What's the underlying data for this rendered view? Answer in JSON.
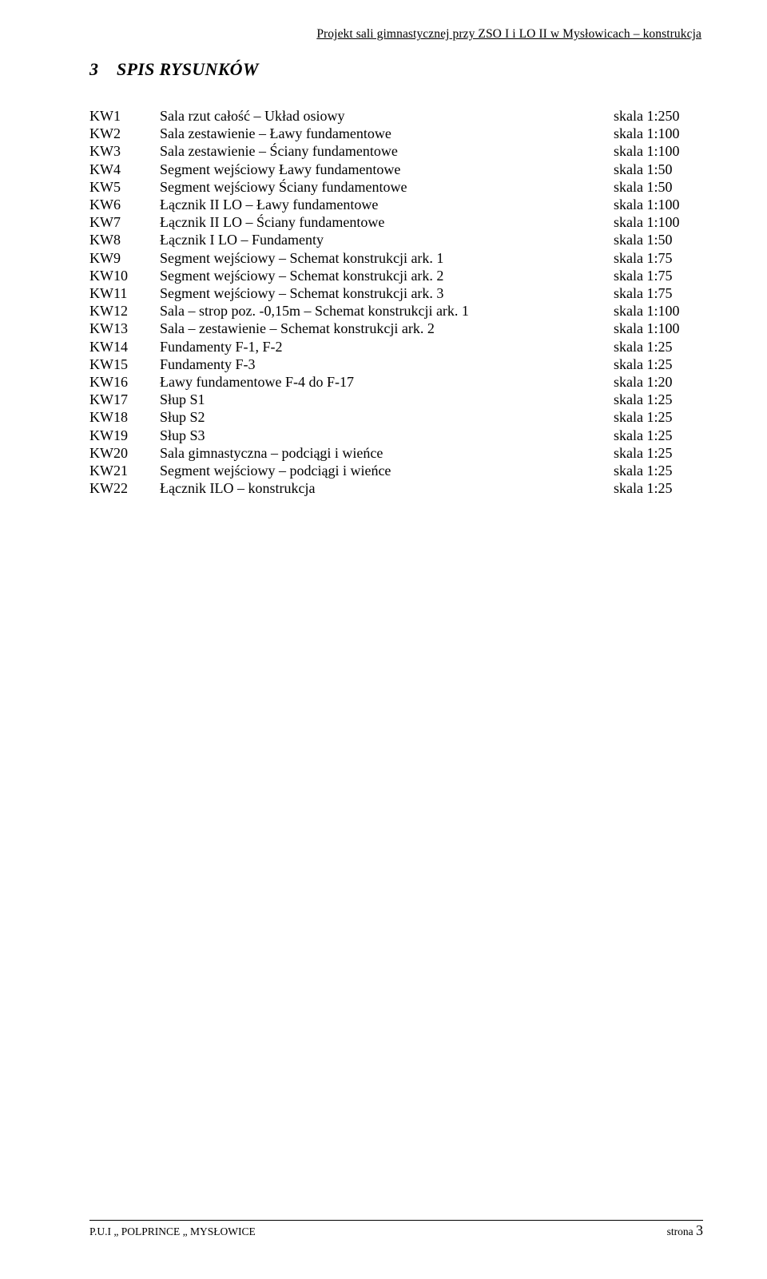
{
  "header": {
    "text": "Projekt sali gimnastycznej przy ZSO I  i  LO II  w Mysłowicach  – konstrukcja"
  },
  "section": {
    "number": "3",
    "title": "SPIS  RYSUNKÓW"
  },
  "rows": [
    {
      "code": "KW1",
      "desc": "Sala rzut całość – Układ osiowy",
      "scale": "skala 1:250"
    },
    {
      "code": "KW2",
      "desc": "Sala zestawienie – Ławy  fundamentowe",
      "scale": "skala 1:100"
    },
    {
      "code": "KW3",
      "desc": "Sala zestawienie – Ściany fundamentowe",
      "scale": "skala 1:100"
    },
    {
      "code": "KW4",
      "desc": "Segment wejściowy Ławy fundamentowe",
      "scale": "skala 1:50"
    },
    {
      "code": "KW5",
      "desc": "Segment wejściowy Ściany fundamentowe",
      "scale": "skala 1:50"
    },
    {
      "code": "KW6",
      "desc": "Łącznik II LO – Ławy fundamentowe",
      "scale": "skala 1:100"
    },
    {
      "code": "KW7",
      "desc": "Łącznik II LO – Ściany fundamentowe",
      "scale": "skala 1:100"
    },
    {
      "code": "KW8",
      "desc": "Łącznik I LO – Fundamenty",
      "scale": "skala 1:50"
    },
    {
      "code": "KW9",
      "desc": "Segment wejściowy – Schemat konstrukcji ark. 1",
      "scale": "skala 1:75"
    },
    {
      "code": "KW10",
      "desc": "Segment wejściowy – Schemat konstrukcji ark. 2",
      "scale": "skala 1:75"
    },
    {
      "code": "KW11",
      "desc": "Segment wejściowy – Schemat konstrukcji ark. 3",
      "scale": "skala 1:75"
    },
    {
      "code": "KW12",
      "desc": "Sala – strop poz. -0,15m – Schemat konstrukcji ark. 1",
      "scale": "skala 1:100"
    },
    {
      "code": "KW13",
      "desc": "Sala – zestawienie  – Schemat konstrukcji ark. 2",
      "scale": "skala 1:100"
    },
    {
      "code": "KW14",
      "desc": "Fundamenty F-1, F-2",
      "scale": "skala 1:25"
    },
    {
      "code": "KW15",
      "desc": "Fundamenty F-3",
      "scale": "skala 1:25"
    },
    {
      "code": "KW16",
      "desc": "Ławy fundamentowe F-4 do F-17",
      "scale": "skala 1:20"
    },
    {
      "code": "KW17",
      "desc": "Słup S1",
      "scale": "skala 1:25"
    },
    {
      "code": "KW18",
      "desc": "Słup S2",
      "scale": "skala 1:25"
    },
    {
      "code": "KW19",
      "desc": "Słup S3",
      "scale": "skala 1:25"
    },
    {
      "code": "KW20",
      "desc": "Sala gimnastyczna – podciągi i wieńce",
      "scale": "skala 1:25"
    },
    {
      "code": "KW21",
      "desc": "Segment wejściowy – podciągi i wieńce",
      "scale": "skala 1:25"
    },
    {
      "code": "KW22",
      "desc": "Łącznik ILO – konstrukcja",
      "scale": "skala 1:25"
    }
  ],
  "footer": {
    "left": "P.U.I „ POLPRINCE „ MYSŁOWICE",
    "right_label": "strona ",
    "page": "3"
  }
}
